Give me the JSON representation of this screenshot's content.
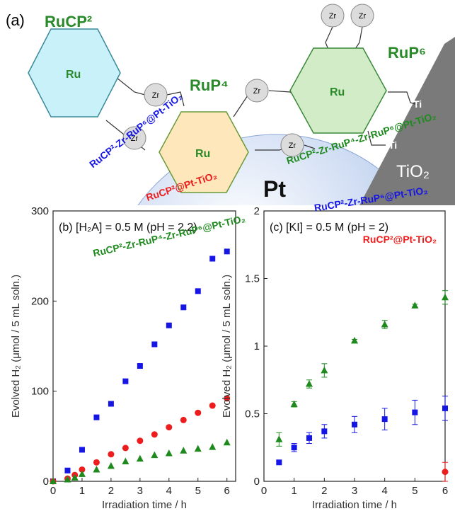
{
  "diagram": {
    "panel": "(a)",
    "complexes": [
      "RuCP²",
      "RuP⁴",
      "RuP⁶"
    ],
    "metal": [
      "Ru",
      "Ru",
      "Ru"
    ],
    "linkers": [
      "Zr",
      "Zr",
      "Zr",
      "Zr",
      "Zr",
      "Zr"
    ],
    "surface": [
      "Ti",
      "Ti"
    ],
    "particle": "Pt",
    "support": "TiO₂"
  },
  "chart_data": [
    {
      "type": "scatter",
      "title": "(b) [H₂A] = 0.5 M (pH = 2.2)",
      "xlabel": "Irradiation time / h",
      "ylabel": "Evolved H₂ (μmol / 5 mL soln.)",
      "xlim": [
        0,
        6.3
      ],
      "xticks": [
        0,
        1,
        2,
        3,
        4,
        5,
        6
      ],
      "ylim": [
        0,
        300
      ],
      "yticks": [
        0,
        100,
        200,
        300
      ],
      "series": [
        {
          "name": "RuCP²-Zr-RuP⁶@Pt-TiO₂",
          "color": "#1515e6",
          "marker": "square",
          "x": [
            0,
            0.5,
            1,
            1.5,
            2,
            2.5,
            3,
            3.5,
            4,
            4.5,
            5,
            5.5,
            6
          ],
          "values": [
            0,
            12,
            35,
            71,
            86,
            111,
            128,
            152,
            173,
            193,
            211,
            247,
            255
          ]
        },
        {
          "name": "RuCP²@Pt-TiO₂",
          "color": "#ee1c1c",
          "marker": "circle",
          "x": [
            0,
            0.5,
            0.75,
            1,
            1.5,
            2,
            2.5,
            3,
            3.5,
            4,
            4.5,
            5,
            5.5,
            6
          ],
          "values": [
            0,
            3,
            7,
            13,
            21,
            30,
            37,
            45,
            52,
            60,
            68,
            76,
            84,
            92
          ]
        },
        {
          "name": "RuCP²-Zr-RuP⁴-Zr-RuP⁶@Pt-TiO₂",
          "color": "#1e8a1e",
          "marker": "triangle",
          "x": [
            0,
            0.5,
            0.75,
            1,
            1.5,
            2,
            2.5,
            3,
            3.5,
            4,
            4.5,
            5,
            5.5,
            6
          ],
          "values": [
            0,
            2,
            4,
            8,
            13,
            17,
            22,
            25,
            29,
            31,
            34,
            36,
            38,
            43
          ]
        }
      ]
    },
    {
      "type": "scatter",
      "title": "(c) [KI] = 0.5 M (pH = 2)",
      "xlabel": "Irradiation time / h",
      "ylabel": "Evolved H₂ (μmol / 5 mL soln.)",
      "xlim": [
        0,
        6
      ],
      "xticks": [
        0,
        1,
        2,
        3,
        4,
        5,
        6
      ],
      "ylim": [
        0,
        2
      ],
      "yticks": [
        0,
        0.5,
        1,
        1.5,
        2
      ],
      "series": [
        {
          "name": "RuCP²-Zr-RuP⁴-Zr-RuP⁶@Pt-TiO₂",
          "color": "#1e8a1e",
          "marker": "triangle",
          "x": [
            0.5,
            1,
            1.5,
            2,
            3,
            4,
            5,
            6
          ],
          "values": [
            0.31,
            0.57,
            0.72,
            0.82,
            1.04,
            1.16,
            1.3,
            1.36
          ],
          "errors": [
            0.05,
            0.02,
            0.03,
            0.05,
            0.01,
            0.03,
            0.01,
            0.05
          ]
        },
        {
          "name": "RuCP²-Zr-RuP⁶@Pt-TiO₂",
          "color": "#1515e6",
          "marker": "square",
          "x": [
            0.5,
            1,
            1.5,
            2,
            3,
            4,
            5,
            6
          ],
          "values": [
            0.14,
            0.25,
            0.32,
            0.37,
            0.42,
            0.46,
            0.51,
            0.54
          ],
          "errors": [
            0.01,
            0.03,
            0.04,
            0.05,
            0.06,
            0.08,
            0.09,
            0.09
          ]
        },
        {
          "name": "RuCP²@Pt-TiO₂",
          "color": "#ee1c1c",
          "marker": "circle",
          "x": [
            6
          ],
          "values": [
            0.07
          ],
          "errors": [
            0.07
          ]
        }
      ]
    }
  ]
}
